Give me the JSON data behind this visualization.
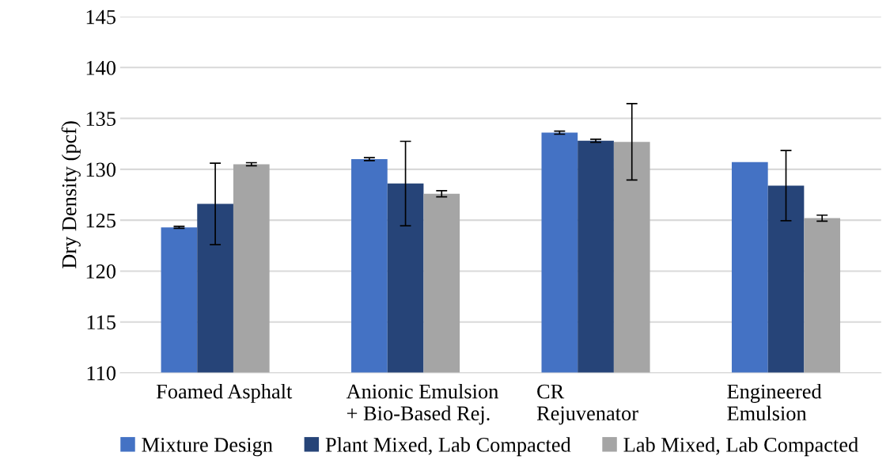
{
  "chart_data": {
    "type": "bar",
    "ylabel": "Dry Density (pcf)",
    "categories": [
      "Foamed Asphalt",
      "Anionic Emulsion\n+ Bio-Based Rej.",
      "CR\nRejuvenator",
      "Engineered\nEmulsion"
    ],
    "series": [
      {
        "name": "Mixture Design",
        "color": "#4472c4",
        "values": [
          124.3,
          131.0,
          133.6,
          130.7
        ],
        "errors": [
          0.1,
          0.15,
          0.15,
          null
        ]
      },
      {
        "name": "Plant Mixed, Lab Compacted",
        "color": "#264478",
        "values": [
          126.6,
          128.6,
          132.8,
          128.4
        ],
        "errors": [
          4.0,
          4.15,
          0.15,
          3.45
        ]
      },
      {
        "name": "Lab Mixed, Lab Compacted",
        "color": "#a5a5a5",
        "values": [
          130.5,
          127.6,
          132.7,
          125.2
        ],
        "errors": [
          0.15,
          0.3,
          3.75,
          0.3
        ]
      }
    ],
    "ylim": [
      110,
      145
    ],
    "yticks": [
      110,
      115,
      120,
      125,
      130,
      135,
      140,
      145
    ],
    "grid": "y",
    "legend": "bottom"
  }
}
